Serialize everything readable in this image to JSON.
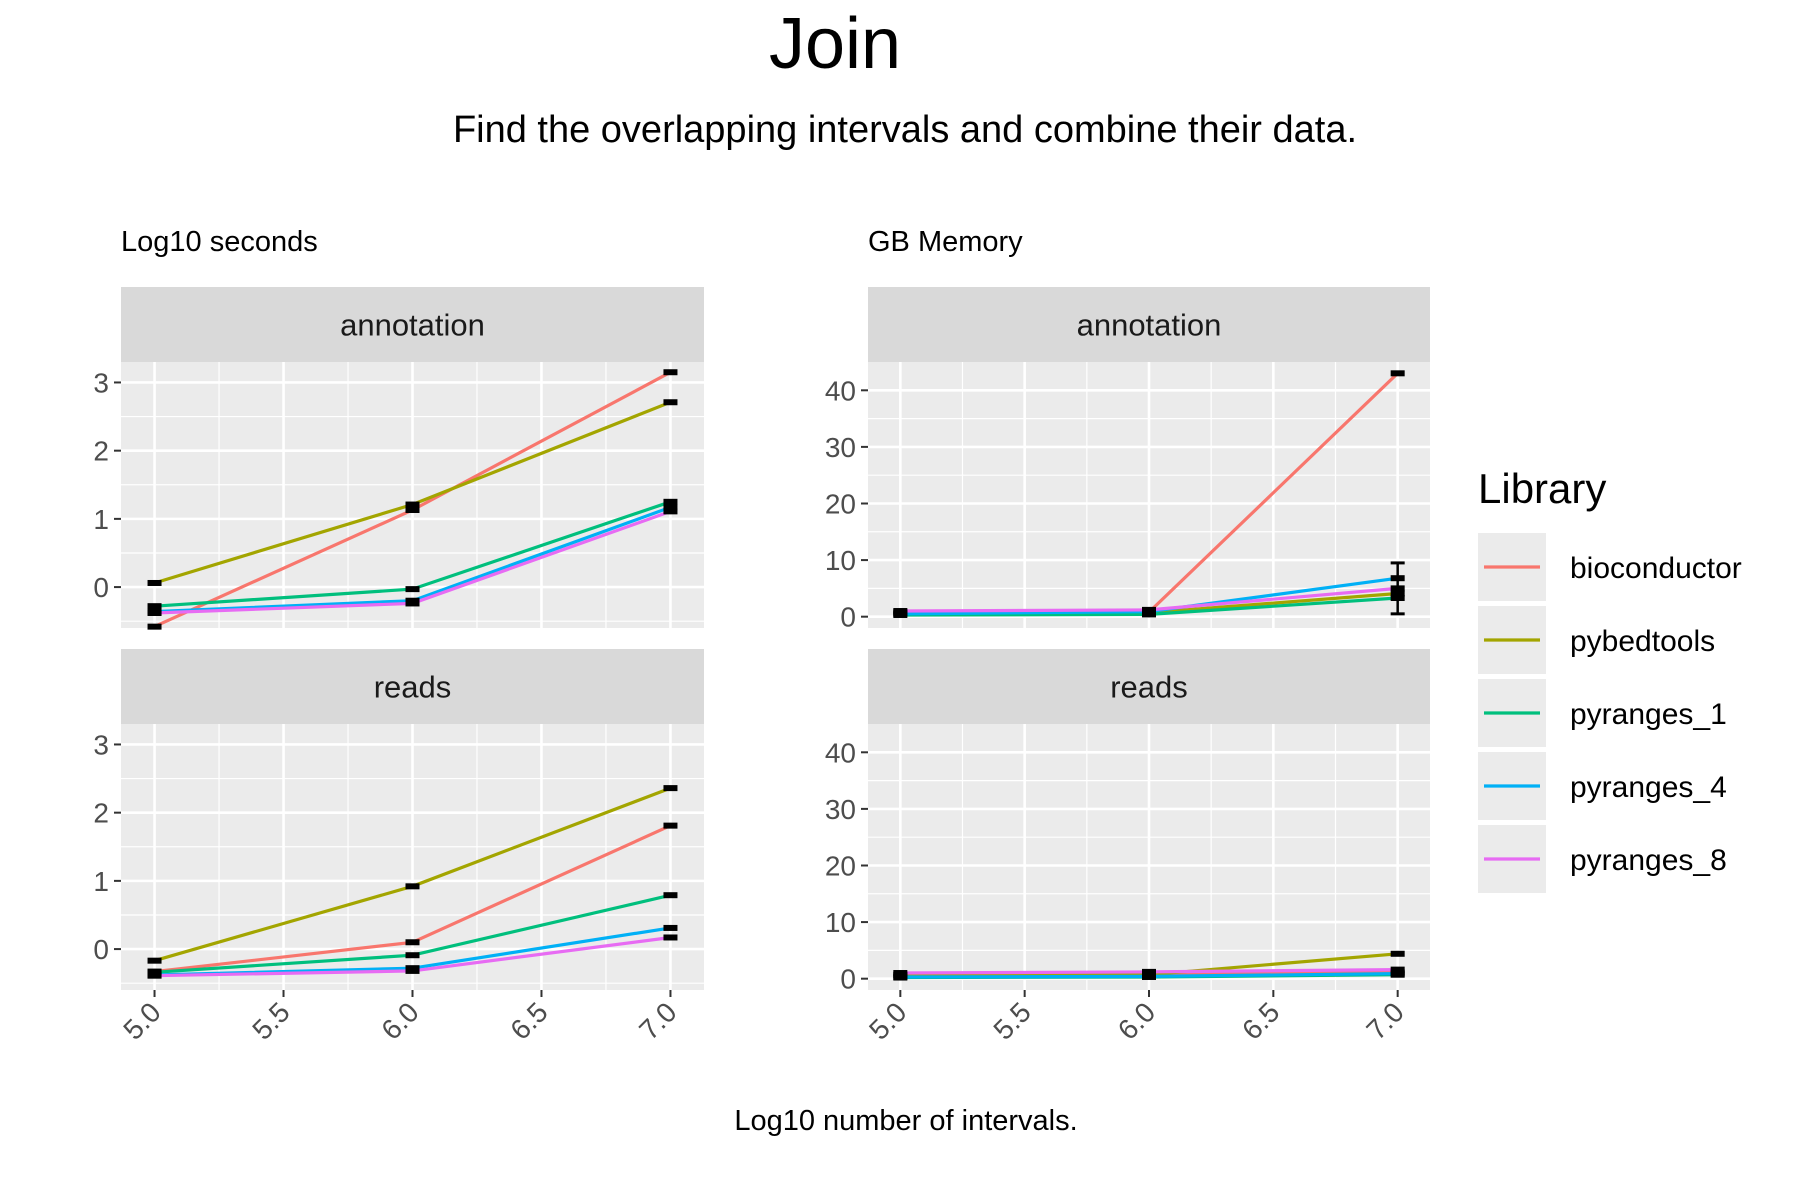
{
  "chart_data": {
    "type": "line",
    "title": "Join",
    "subtitle": "Find the overlapping intervals and combine their data.",
    "xlabel": "Log10 number of intervals.",
    "x": [
      5.0,
      6.0,
      7.0
    ],
    "x_ticks": [
      "5.0",
      "5.5",
      "6.0",
      "6.5",
      "7.0"
    ],
    "x_tick_values": [
      5.0,
      5.5,
      6.0,
      6.5,
      7.0
    ],
    "legend": {
      "title": "Library",
      "placement": "right",
      "items": [
        {
          "name": "bioconductor",
          "color": "#F8766D"
        },
        {
          "name": "pybedtools",
          "color": "#A3A500"
        },
        {
          "name": "pyranges_1",
          "color": "#00BF7D"
        },
        {
          "name": "pyranges_4",
          "color": "#00B0F6"
        },
        {
          "name": "pyranges_8",
          "color": "#E76BF3"
        }
      ]
    },
    "panels": [
      {
        "column_label": "Log10 seconds",
        "facets": [
          {
            "strip": "annotation",
            "ylim": [
              -0.6,
              3.3
            ],
            "y_ticks": [
              0,
              1,
              2,
              3
            ],
            "series": [
              {
                "name": "bioconductor",
                "values": [
                  -0.58,
                  1.13,
                  3.15
                ]
              },
              {
                "name": "pybedtools",
                "values": [
                  0.06,
                  1.21,
                  2.71
                ]
              },
              {
                "name": "pyranges_1",
                "values": [
                  -0.28,
                  -0.03,
                  1.25
                ]
              },
              {
                "name": "pyranges_4",
                "values": [
                  -0.36,
                  -0.2,
                  1.17
                ]
              },
              {
                "name": "pyranges_8",
                "values": [
                  -0.38,
                  -0.24,
                  1.11
                ]
              }
            ]
          },
          {
            "strip": "reads",
            "ylim": [
              -0.6,
              3.3
            ],
            "y_ticks": [
              0,
              1,
              2,
              3
            ],
            "series": [
              {
                "name": "bioconductor",
                "values": [
                  -0.33,
                  0.1,
                  1.81
                ]
              },
              {
                "name": "pybedtools",
                "values": [
                  -0.17,
                  0.92,
                  2.36
                ]
              },
              {
                "name": "pyranges_1",
                "values": [
                  -0.34,
                  -0.09,
                  0.79
                ]
              },
              {
                "name": "pyranges_4",
                "values": [
                  -0.38,
                  -0.28,
                  0.31
                ]
              },
              {
                "name": "pyranges_8",
                "values": [
                  -0.39,
                  -0.32,
                  0.17
                ]
              }
            ]
          }
        ]
      },
      {
        "column_label": "GB Memory",
        "facets": [
          {
            "strip": "annotation",
            "ylim": [
              -2,
              45
            ],
            "y_ticks": [
              0,
              10,
              20,
              30,
              40
            ],
            "series": [
              {
                "name": "bioconductor",
                "values": [
                  0.8,
                  0.8,
                  43.0
                ]
              },
              {
                "name": "pybedtools",
                "values": [
                  0.6,
                  0.7,
                  4.1
                ]
              },
              {
                "name": "pyranges_1",
                "values": [
                  0.3,
                  0.4,
                  3.3
                ]
              },
              {
                "name": "pyranges_4",
                "values": [
                  0.5,
                  0.9,
                  6.8
                ]
              },
              {
                "name": "pyranges_8",
                "values": [
                  1.0,
                  1.2,
                  5.0
                ]
              }
            ],
            "error_bars": [
              {
                "x": 7.0,
                "low": 0.5,
                "high": 9.5
              }
            ]
          },
          {
            "strip": "reads",
            "ylim": [
              -2,
              45
            ],
            "y_ticks": [
              0,
              10,
              20,
              30,
              40
            ],
            "series": [
              {
                "name": "bioconductor",
                "values": [
                  0.7,
                  0.8,
                  1.1
                ]
              },
              {
                "name": "pybedtools",
                "values": [
                  0.6,
                  0.7,
                  4.4
                ]
              },
              {
                "name": "pyranges_1",
                "values": [
                  0.2,
                  0.3,
                  0.7
                ]
              },
              {
                "name": "pyranges_4",
                "values": [
                  0.3,
                  0.4,
                  0.9
                ]
              },
              {
                "name": "pyranges_8",
                "values": [
                  1.0,
                  1.2,
                  1.6
                ]
              }
            ]
          }
        ]
      }
    ],
    "grid": true
  }
}
